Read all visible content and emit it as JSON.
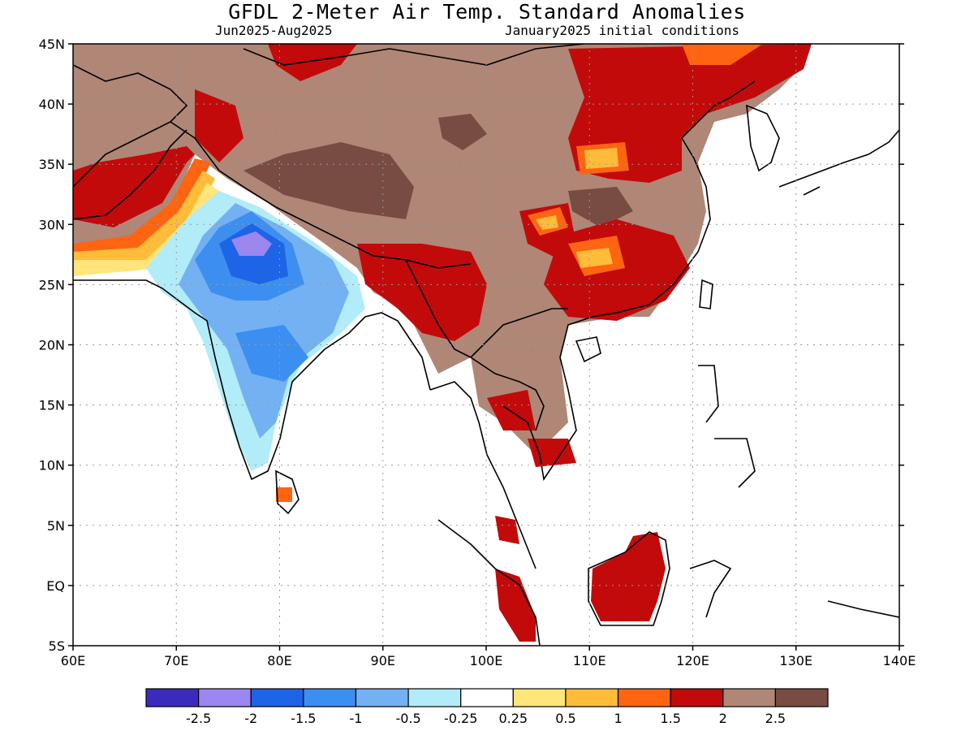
{
  "header": {
    "title": "GFDL 2-Meter Air Temp. Standard Anomalies",
    "period": "Jun2025-Aug2025",
    "init": "January2025 initial conditions"
  },
  "map": {
    "lon_range": [
      60,
      140
    ],
    "lat_range": [
      -5,
      45
    ],
    "lat_ticks": [
      "45N",
      "40N",
      "35N",
      "30N",
      "25N",
      "20N",
      "15N",
      "10N",
      "5N",
      "EQ",
      "5S"
    ],
    "lon_ticks": [
      "60E",
      "70E",
      "80E",
      "90E",
      "100E",
      "110E",
      "120E",
      "130E",
      "140E"
    ],
    "grid": "dotted"
  },
  "legend": {
    "colors": [
      "#3b2bbd",
      "#9b87ef",
      "#1e64e6",
      "#3c8ff0",
      "#74b1f3",
      "#b1ecf8",
      "#ffffff",
      "#ffe57a",
      "#ffbb3a",
      "#ff6411",
      "#c20a0a",
      "#b08676",
      "#784c43"
    ],
    "labels": [
      "-2.5",
      "-2",
      "-1.5",
      "-1",
      "-0.5",
      "-0.25",
      "0.25",
      "0.5",
      "1",
      "1.5",
      "2",
      "2.5"
    ]
  }
}
